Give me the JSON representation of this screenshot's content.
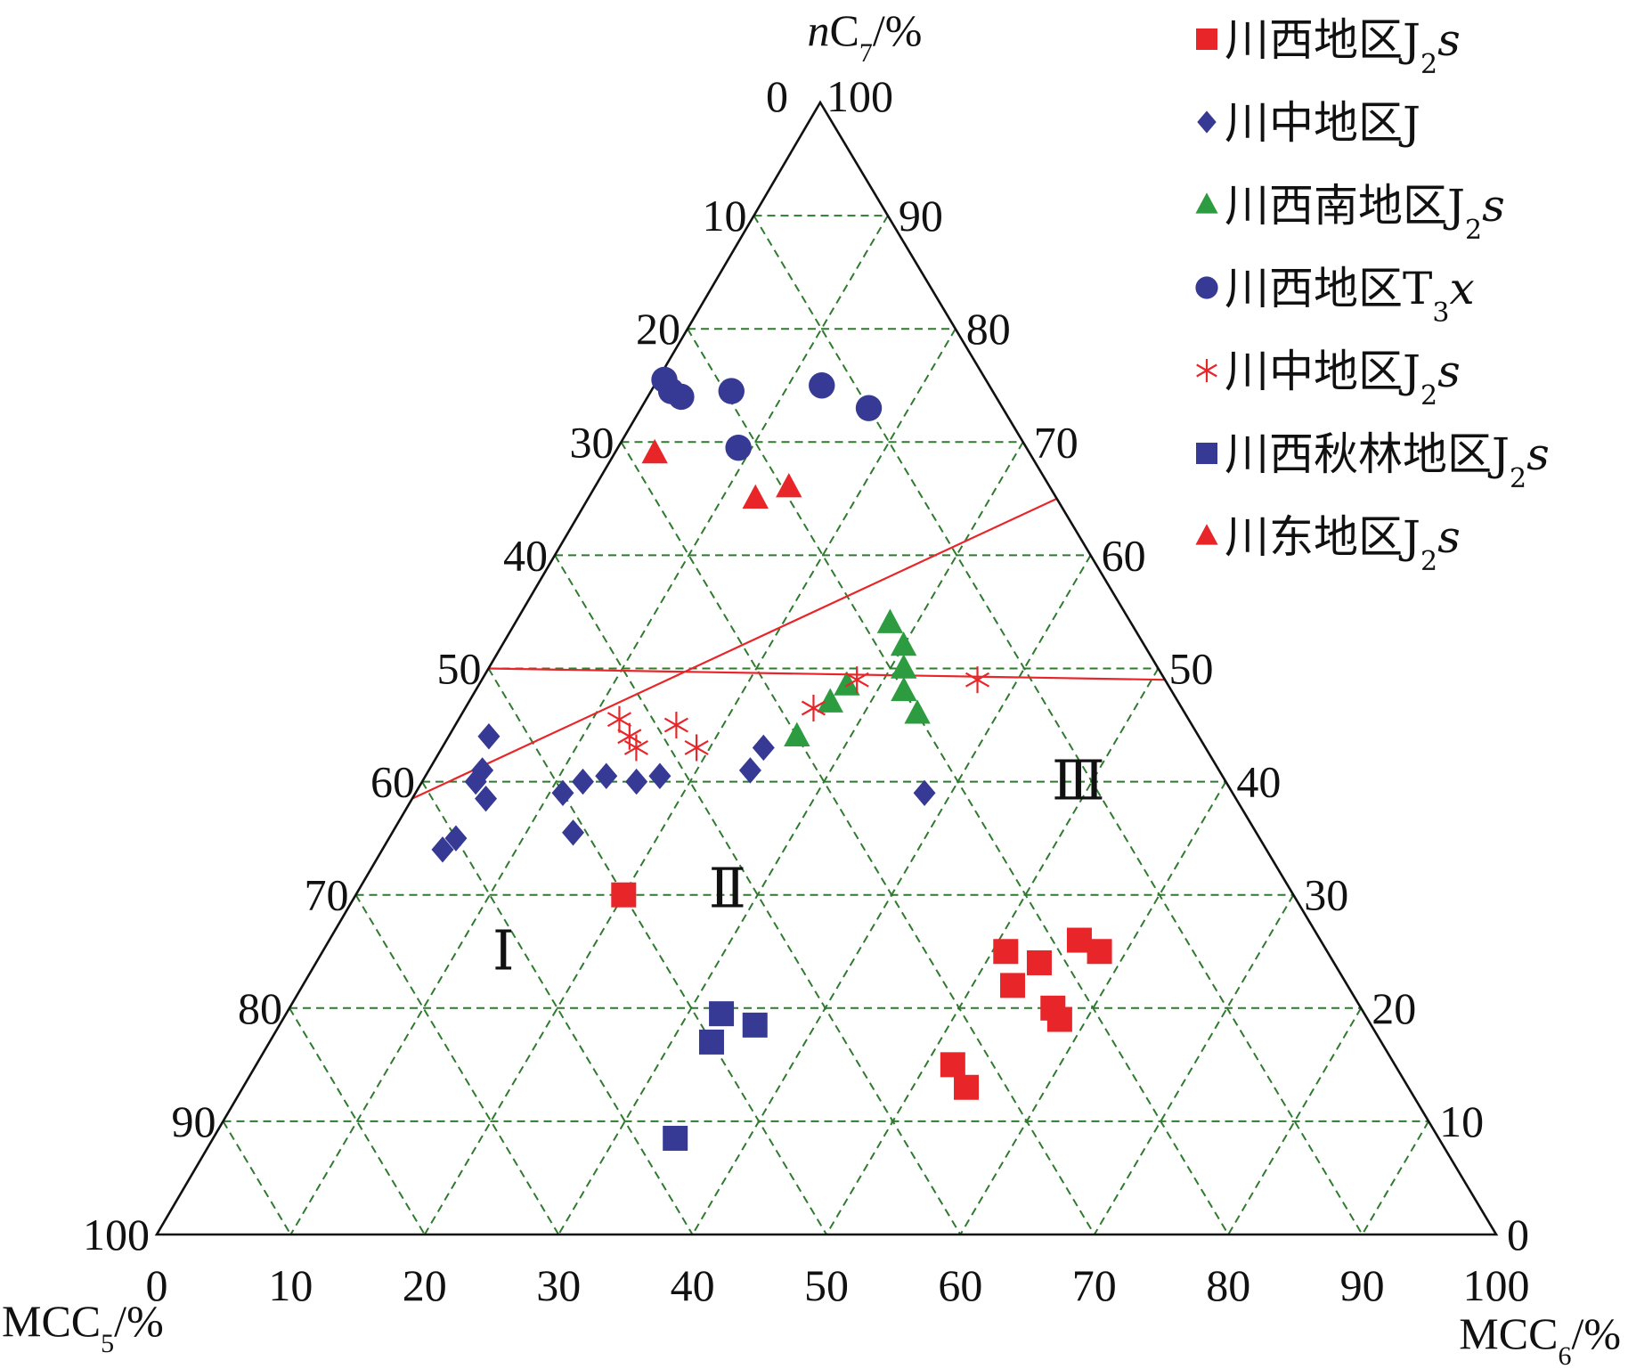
{
  "chart_data": {
    "type": "scatter",
    "subtype": "ternary",
    "axes": {
      "top": "nC7/%",
      "left": "MCC5/%",
      "right": "MCC6/%"
    },
    "axis_titles": [
      {
        "key": "top",
        "parts": [
          {
            "t": "n",
            "i": true
          },
          {
            "t": "C"
          },
          {
            "t": "7",
            "sub": true
          },
          {
            "t": "/%"
          }
        ]
      },
      {
        "key": "left",
        "parts": [
          {
            "t": "MCC"
          },
          {
            "t": "5",
            "sub": true
          },
          {
            "t": "/%"
          }
        ]
      },
      {
        "key": "right",
        "parts": [
          {
            "t": "MCC"
          },
          {
            "t": "6",
            "sub": true
          },
          {
            "t": "/%"
          }
        ]
      }
    ],
    "tick_labels": {
      "top": [
        "0",
        "100"
      ],
      "left": [
        "10",
        "20",
        "30",
        "40",
        "50",
        "60",
        "70",
        "80",
        "90",
        "100"
      ],
      "right": [
        "90",
        "80",
        "70",
        "60",
        "50",
        "40",
        "30",
        "20",
        "10",
        "0"
      ],
      "bottom": [
        "0",
        "10",
        "20",
        "30",
        "40",
        "50",
        "60",
        "70",
        "80",
        "90",
        "100"
      ]
    },
    "grid": true,
    "grid_step": 10,
    "legend_position": "top-right",
    "region_labels": [
      "Ⅰ",
      "Ⅱ",
      "Ⅲ"
    ],
    "boundaries": [
      {
        "from": [
          0,
          35
        ],
        "to": [
          61.5,
          0
        ]
      },
      {
        "from": [
          0,
          51
        ],
        "to": [
          50,
          0
        ]
      }
    ],
    "series": [
      {
        "name": "川西地区J2s",
        "label_parts": [
          {
            "t": "川西地区J"
          },
          {
            "t": "2",
            "sub": true
          },
          {
            "t": "s",
            "i": true
          }
        ],
        "marker": "square",
        "color": "#e8262a",
        "points": [
          [
            50,
            20
          ],
          [
            33,
            52
          ],
          [
            33,
            54
          ],
          [
            23,
            58
          ],
          [
            22,
            54
          ],
          [
            23,
            57
          ],
          [
            25,
            53
          ],
          [
            24,
            51
          ],
          [
            17,
            58
          ],
          [
            18,
            56
          ]
        ]
      },
      {
        "name": "川中地区J",
        "label_parts": [
          {
            "t": "川中地区J"
          }
        ],
        "marker": "diamond",
        "color": "#363a94",
        "points": [
          [
            61.5,
            4.5
          ],
          [
            60,
            5
          ],
          [
            56,
            4
          ],
          [
            56,
            5.5
          ],
          [
            55,
            4
          ],
          [
            53,
            3
          ],
          [
            48,
            12
          ],
          [
            46,
            13.5
          ],
          [
            51,
            13.5
          ],
          [
            50,
            11
          ],
          [
            44,
            16
          ],
          [
            42,
            17.5
          ],
          [
            35,
            24
          ],
          [
            33,
            24
          ],
          [
            23,
            38
          ]
        ]
      },
      {
        "name": "川西南地区J2s",
        "label_parts": [
          {
            "t": "川西南地区J"
          },
          {
            "t": "2",
            "sub": true
          },
          {
            "t": "s",
            "i": true
          }
        ],
        "marker": "triangle",
        "color": "#2d9b3f",
        "points": [
          [
            30,
            26
          ],
          [
            26,
            27
          ],
          [
            24,
            27.5
          ],
          [
            18,
            28
          ],
          [
            18,
            30
          ],
          [
            19,
            31
          ],
          [
            20,
            32
          ],
          [
            20,
            34
          ]
        ]
      },
      {
        "name": "川西地区T3x",
        "label_parts": [
          {
            "t": "川西地区T"
          },
          {
            "t": "3",
            "sub": true
          },
          {
            "t": "x",
            "i": true
          }
        ],
        "marker": "circle",
        "color": "#363a94",
        "points": [
          [
            24,
            0.5
          ],
          [
            24,
            1.5
          ],
          [
            23.5,
            2.5
          ],
          [
            21.5,
            9
          ],
          [
            19.5,
            6
          ],
          [
            12.5,
            12.5
          ],
          [
            10,
            17
          ]
        ]
      },
      {
        "name": "川中地区J2s",
        "label_parts": [
          {
            "t": "川中地区J"
          },
          {
            "t": "2",
            "sub": true
          },
          {
            "t": "s",
            "i": true
          }
        ],
        "marker": "asterisk",
        "color": "#e8262a",
        "points": [
          [
            42.5,
            14.5
          ],
          [
            42.5,
            13.5
          ],
          [
            42.5,
            12
          ],
          [
            38.5,
            16.5
          ],
          [
            38,
            19
          ],
          [
            27.5,
            26
          ],
          [
            23,
            28
          ],
          [
            14,
            37
          ]
        ]
      },
      {
        "name": "川西秋林地区J2s",
        "label_parts": [
          {
            "t": "川西秋林地区J"
          },
          {
            "t": "2",
            "sub": true
          },
          {
            "t": "s",
            "i": true
          }
        ],
        "marker": "square",
        "color": "#363a94",
        "points": [
          [
            57,
            34.5
          ],
          [
            50,
            33
          ],
          [
            48,
            32.5
          ],
          [
            46,
            35.5
          ]
        ]
      },
      {
        "name": "川东地区J2s",
        "label_parts": [
          {
            "t": "川东地区J"
          },
          {
            "t": "2",
            "sub": true
          },
          {
            "t": "s",
            "i": true
          }
        ],
        "marker": "triangle",
        "color": "#e8262a",
        "points": [
          [
            28,
            3
          ],
          [
            22.5,
            12.5
          ],
          [
            19.5,
            14.5
          ]
        ]
      }
    ]
  }
}
